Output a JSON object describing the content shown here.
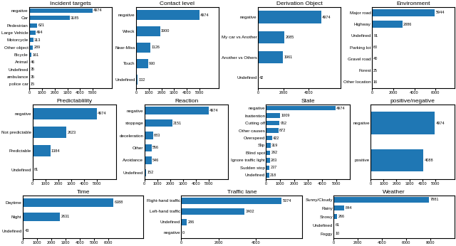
{
  "chart_data": [
    {
      "type": "bar",
      "orientation": "horizontal",
      "title": "Incident targets",
      "categories": [
        "negative",
        "Car",
        "Pedestrian",
        "Large Vehicle",
        "Motorcycle",
        "Other object",
        "Bicycle",
        "Animal",
        "Undefined",
        "ambulance",
        "police car"
      ],
      "values": [
        4974,
        3185,
        621,
        494,
        313,
        289,
        161,
        46,
        35,
        35,
        15
      ],
      "xlim": [
        0,
        6500
      ],
      "xticks": [
        0,
        1000,
        2000,
        3000,
        4000,
        5000
      ],
      "data_labels": true
    },
    {
      "type": "bar",
      "orientation": "horizontal",
      "title": "Contact level",
      "categories": [
        "negative",
        "Wreck",
        "Near-Miss",
        "Touch",
        "Undefined"
      ],
      "values": [
        4974,
        1900,
        1126,
        930,
        132
      ],
      "xlim": [
        0,
        6500
      ],
      "xticks": [
        0,
        1000,
        2000,
        3000,
        4000,
        5000
      ],
      "data_labels": true
    },
    {
      "type": "bar",
      "orientation": "horizontal",
      "title": "Derivation Object",
      "categories": [
        "negative",
        "My car vs Another",
        "Another vs Others",
        "Undefined"
      ],
      "values": [
        4974,
        2085,
        1961,
        42
      ],
      "xlim": [
        0,
        6500
      ],
      "xticks": [
        0,
        2000,
        4000
      ],
      "data_labels": true
    },
    {
      "type": "bar",
      "orientation": "horizontal",
      "title": "Environment",
      "categories": [
        "Major road",
        "Highway",
        "Undefined",
        "Parking lot",
        "Gravel road",
        "Forest",
        "Other location"
      ],
      "values": [
        5944,
        2886,
        91,
        60,
        40,
        25,
        16
      ],
      "xlim": [
        0,
        7800
      ],
      "xticks": [
        0,
        2000,
        4000,
        6000
      ],
      "data_labels": true
    },
    {
      "type": "bar",
      "orientation": "horizontal",
      "title": "Predictablility",
      "categories": [
        "negative",
        "Not predictable",
        "Predictable",
        "Undefined"
      ],
      "values": [
        4974,
        2623,
        1384,
        81
      ],
      "xlim": [
        0,
        6500
      ],
      "xticks": [
        0,
        1000,
        2000,
        3000,
        4000,
        5000
      ],
      "data_labels": true
    },
    {
      "type": "bar",
      "orientation": "horizontal",
      "title": "Reaction",
      "categories": [
        "negative",
        "stoppage",
        "deceleration",
        "Other",
        "Avoidance",
        "Undefined"
      ],
      "values": [
        4974,
        2151,
        683,
        556,
        546,
        152
      ],
      "xlim": [
        0,
        6500
      ],
      "xticks": [
        0,
        1000,
        2000,
        3000,
        4000,
        5000
      ],
      "data_labels": true
    },
    {
      "type": "bar",
      "orientation": "horizontal",
      "title": "State",
      "categories": [
        "negative",
        "Inattention",
        "Cutting off",
        "Other causes",
        "Overspeed",
        "Slip",
        "Blind spot",
        "Ignore traffic light",
        "Sudden stop",
        "Undefined"
      ],
      "values": [
        4974,
        1009,
        952,
        872,
        422,
        319,
        292,
        283,
        237,
        218
      ],
      "xlim": [
        0,
        6000
      ],
      "xticks": [
        0,
        1000,
        2000,
        3000,
        4000,
        5000
      ],
      "data_labels": true
    },
    {
      "type": "bar",
      "orientation": "horizontal",
      "title": "positive/negative",
      "categories": [
        "negative",
        "positive"
      ],
      "values": [
        4974,
        4088
      ],
      "xlim": [
        0,
        6500
      ],
      "xticks": [
        0,
        1000,
        2000,
        3000,
        4000,
        5000
      ],
      "data_labels": true
    },
    {
      "type": "bar",
      "orientation": "horizontal",
      "title": "Time",
      "categories": [
        "Daytime",
        "Night",
        "Undefined"
      ],
      "values": [
        6388,
        2631,
        43
      ],
      "xlim": [
        0,
        8500
      ],
      "xticks": [
        0,
        1000,
        2000,
        3000,
        4000,
        5000,
        6000
      ],
      "data_labels": true
    },
    {
      "type": "bar",
      "orientation": "horizontal",
      "title": "Traffic lane",
      "categories": [
        "Right-hand traffic",
        "Left-hand traffic",
        "Undefined",
        "negative"
      ],
      "values": [
        5374,
        3402,
        286,
        0
      ],
      "xlim": [
        0,
        6500
      ],
      "xticks": [
        0,
        2000,
        4000
      ],
      "data_labels": true
    },
    {
      "type": "bar",
      "orientation": "horizontal",
      "title": "Weather",
      "categories": [
        "Sunny/Cloudy",
        "Rainy",
        "Snowy",
        "Undefined",
        "Foggy"
      ],
      "values": [
        7881,
        844,
        266,
        61,
        10
      ],
      "xlim": [
        0,
        10000
      ],
      "xticks": [
        0,
        2000,
        4000,
        6000,
        8000
      ],
      "data_labels": true
    }
  ]
}
